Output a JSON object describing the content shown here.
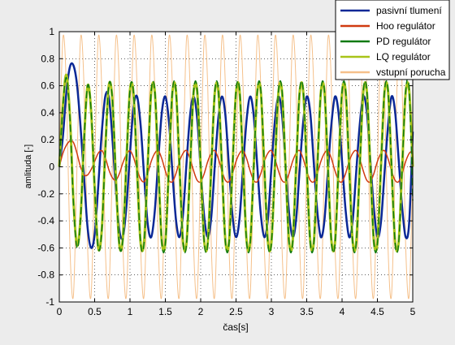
{
  "chart_data": {
    "type": "line",
    "title": "",
    "xlabel": "čas[s]",
    "ylabel": "amlituda [-]",
    "xlim": [
      0,
      5
    ],
    "ylim": [
      -1,
      1
    ],
    "xticks": [
      "0",
      "0.5",
      "1",
      "1.5",
      "2",
      "2.5",
      "3",
      "3.5",
      "4",
      "4.5",
      "5"
    ],
    "yticks": [
      "1",
      "0.8",
      "0.6",
      "0.4",
      "0.2",
      "0",
      "-0.2",
      "-0.4",
      "-0.6",
      "-0.8",
      "-1"
    ],
    "grid": true,
    "legend_position": "top-right",
    "series": [
      {
        "name": "vstupní porucha",
        "color": "#f5c08a",
        "width": 1,
        "x": [
          0.0,
          0.05,
          0.1,
          0.15,
          0.2,
          0.25,
          0.3,
          0.35,
          0.4,
          0.45,
          0.5,
          0.55,
          0.6,
          0.65,
          0.7,
          0.75,
          0.8,
          0.85,
          0.9,
          0.95,
          1.0,
          1.05,
          1.1,
          1.15,
          1.2,
          1.25,
          1.3,
          1.35,
          1.4,
          1.45,
          1.5,
          1.55,
          1.6,
          1.65,
          1.7,
          1.75,
          1.8,
          1.85,
          1.9,
          1.95,
          2.0,
          2.05,
          2.1,
          2.15,
          2.2,
          2.25,
          2.3,
          2.35,
          2.4,
          2.45,
          2.5,
          2.55,
          2.6,
          2.65,
          2.7,
          2.75,
          2.8,
          2.85,
          2.9,
          2.95,
          3.0,
          3.05,
          3.1,
          3.15,
          3.2,
          3.25,
          3.3,
          3.35,
          3.4,
          3.45,
          3.5,
          3.55,
          3.6,
          3.65,
          3.7,
          3.75,
          3.8,
          3.85,
          3.9,
          3.95,
          4.0,
          4.05,
          4.1,
          4.15,
          4.2,
          4.25,
          4.3,
          4.35,
          4.4,
          4.45,
          4.5,
          4.55,
          4.6,
          4.65,
          4.7,
          4.75,
          4.8,
          4.85,
          4.9,
          4.95,
          5.0
        ],
        "y": [
          0,
          0.95,
          0.59,
          -0.59,
          -0.95,
          0,
          0.95,
          0.59,
          -0.59,
          -0.95,
          0,
          0.95,
          0.59,
          -0.59,
          -0.95,
          0,
          0.95,
          0.59,
          -0.59,
          -0.95,
          0,
          0.95,
          0.59,
          -0.59,
          -0.95,
          0,
          0.95,
          0.59,
          -0.59,
          -0.95,
          0,
          0.95,
          0.59,
          -0.59,
          -0.95,
          0,
          0.95,
          0.59,
          -0.59,
          -0.95,
          0,
          0.95,
          0.59,
          -0.59,
          -0.95,
          0,
          0.95,
          0.59,
          -0.59,
          -0.95,
          0,
          0.95,
          0.59,
          -0.59,
          -0.95,
          0,
          0.95,
          0.59,
          -0.59,
          -0.95,
          0,
          0.95,
          0.59,
          -0.59,
          -0.95,
          0,
          0.95,
          0.59,
          -0.59,
          -0.95,
          0,
          0.95,
          0.59,
          -0.59,
          -0.95,
          0,
          0.95,
          0.59,
          -0.59,
          -0.95,
          0,
          0.95,
          0.59,
          -0.59,
          -0.95,
          0,
          0.95,
          0.59,
          -0.59,
          -0.95,
          0,
          0.95,
          0.59,
          -0.59,
          -0.95,
          0,
          0.95,
          0.59,
          -0.59,
          -0.95,
          0
        ]
      },
      {
        "name": "pasivní tlumení",
        "color": "#0a2896",
        "width": 2.5,
        "x": [
          0.0,
          0.05,
          0.1,
          0.15,
          0.2,
          0.25,
          0.3,
          0.35,
          0.4,
          0.45,
          0.5,
          0.55,
          0.6,
          0.65,
          0.7,
          0.75,
          0.8,
          0.85,
          0.9,
          0.95,
          1.0,
          1.05,
          1.1,
          1.15,
          1.2,
          1.25,
          1.3,
          1.35,
          1.4,
          1.45,
          1.5,
          1.55,
          1.6,
          1.65,
          1.7,
          1.75,
          1.8,
          1.85,
          1.9,
          1.95,
          2.0,
          2.05,
          2.1,
          2.15,
          2.2,
          2.25,
          2.3,
          2.35,
          2.4,
          2.45,
          2.5,
          2.55,
          2.6,
          2.65,
          2.7,
          2.75,
          2.8,
          2.85,
          2.9,
          2.95,
          3.0,
          3.05,
          3.1,
          3.15,
          3.2,
          3.25,
          3.3,
          3.35,
          3.4,
          3.45,
          3.5,
          3.55,
          3.6,
          3.65,
          3.7,
          3.75,
          3.8,
          3.85,
          3.9,
          3.95,
          4.0,
          4.05,
          4.1,
          4.15,
          4.2,
          4.25,
          4.3,
          4.35,
          4.4,
          4.45,
          4.5,
          4.55,
          4.6,
          4.65,
          4.7,
          4.75,
          4.8,
          4.85,
          4.9,
          4.95,
          5.0
        ],
        "y": [
          0,
          0.22,
          0.55,
          0.74,
          0.75,
          0.61,
          0.3,
          -0.08,
          -0.45,
          -0.6,
          -0.5,
          -0.15,
          0.25,
          0.52,
          0.52,
          0.22,
          -0.17,
          -0.47,
          -0.52,
          -0.29,
          0.1,
          0.44,
          0.52,
          0.31,
          -0.07,
          -0.42,
          -0.52,
          -0.33,
          0.05,
          0.4,
          0.52,
          0.34,
          -0.04,
          -0.39,
          -0.52,
          -0.35,
          0.03,
          0.38,
          0.52,
          0.36,
          -0.02,
          -0.37,
          -0.52,
          -0.37,
          0.01,
          0.36,
          0.52,
          0.38,
          0,
          -0.36,
          -0.52,
          -0.38,
          0,
          0.35,
          0.52,
          0.38,
          0.01,
          -0.35,
          -0.52,
          -0.39,
          -0.01,
          0.34,
          0.52,
          0.39,
          0.02,
          -0.34,
          -0.52,
          -0.39,
          -0.02,
          0.33,
          0.52,
          0.4,
          0.03,
          -0.33,
          -0.52,
          -0.4,
          -0.03,
          0.32,
          0.52,
          0.4,
          0.04,
          -0.32,
          -0.52,
          -0.4,
          -0.04,
          0.31,
          0.52,
          0.41,
          0.05,
          -0.31,
          -0.52,
          -0.41,
          -0.05,
          0.3,
          0.52,
          0.41,
          0.06,
          -0.3,
          -0.52,
          -0.41,
          0.26
        ]
      },
      {
        "name": "Hoo regulátor",
        "color": "#d03a10",
        "width": 1.5,
        "x": [
          0.0,
          0.05,
          0.1,
          0.15,
          0.2,
          0.25,
          0.3,
          0.35,
          0.4,
          0.45,
          0.5,
          0.55,
          0.6,
          0.65,
          0.7,
          0.75,
          0.8,
          0.85,
          0.9,
          0.95,
          1.0,
          1.05,
          1.1,
          1.15,
          1.2,
          1.25,
          1.3,
          1.35,
          1.4,
          1.45,
          1.5,
          1.55,
          1.6,
          1.65,
          1.7,
          1.75,
          1.8,
          1.85,
          1.9,
          1.95,
          2.0,
          2.05,
          2.1,
          2.15,
          2.2,
          2.25,
          2.3,
          2.35,
          2.4,
          2.45,
          2.5,
          2.55,
          2.6,
          2.65,
          2.7,
          2.75,
          2.8,
          2.85,
          2.9,
          2.95,
          3.0,
          3.05,
          3.1,
          3.15,
          3.2,
          3.25,
          3.3,
          3.35,
          3.4,
          3.45,
          3.5,
          3.55,
          3.6,
          3.65,
          3.7,
          3.75,
          3.8,
          3.85,
          3.9,
          3.95,
          4.0,
          4.05,
          4.1,
          4.15,
          4.2,
          4.25,
          4.3,
          4.35,
          4.4,
          4.45,
          4.5,
          4.55,
          4.6,
          4.65,
          4.7,
          4.75,
          4.8,
          4.85,
          4.9,
          4.95,
          5.0
        ],
        "y": [
          0,
          0.1,
          0.16,
          0.19,
          0.18,
          0.1,
          0,
          -0.06,
          -0.06,
          -0.02,
          0.04,
          0.1,
          0.12,
          0.07,
          -0.02,
          -0.08,
          -0.1,
          -0.05,
          0.03,
          0.09,
          0.12,
          0.07,
          -0.02,
          -0.09,
          -0.11,
          -0.05,
          0.04,
          0.1,
          0.12,
          0.06,
          -0.03,
          -0.1,
          -0.11,
          -0.05,
          0.04,
          0.1,
          0.12,
          0.06,
          -0.03,
          -0.1,
          -0.11,
          -0.05,
          0.04,
          0.1,
          0.12,
          0.06,
          -0.03,
          -0.1,
          -0.11,
          -0.05,
          0.04,
          0.1,
          0.12,
          0.06,
          -0.03,
          -0.1,
          -0.11,
          -0.05,
          0.04,
          0.1,
          0.12,
          0.06,
          -0.03,
          -0.1,
          -0.11,
          -0.05,
          0.04,
          0.1,
          0.12,
          0.06,
          -0.03,
          -0.1,
          -0.11,
          -0.05,
          0.04,
          0.1,
          0.12,
          0.06,
          -0.03,
          -0.1,
          -0.11,
          -0.05,
          0.04,
          0.1,
          0.12,
          0.06,
          -0.03,
          -0.1,
          -0.11,
          -0.05,
          0.04,
          0.1,
          0.12,
          0.06,
          -0.03,
          -0.1,
          -0.11,
          -0.05,
          0.04,
          0.1,
          0.12
        ]
      },
      {
        "name": "LQ regulátor",
        "color": "#a8c418",
        "width": 3,
        "x": [
          0.0,
          0.05,
          0.1,
          0.15,
          0.2,
          0.25,
          0.3,
          0.35,
          0.4,
          0.45,
          0.5,
          0.55,
          0.6,
          0.65,
          0.7,
          0.75,
          0.8,
          0.85,
          0.9,
          0.95,
          1.0,
          1.05,
          1.1,
          1.15,
          1.2,
          1.25,
          1.3,
          1.35,
          1.4,
          1.45,
          1.5,
          1.55,
          1.6,
          1.65,
          1.7,
          1.75,
          1.8,
          1.85,
          1.9,
          1.95,
          2.0,
          2.05,
          2.1,
          2.15,
          2.2,
          2.25,
          2.3,
          2.35,
          2.4,
          2.45,
          2.5,
          2.55,
          2.6,
          2.65,
          2.7,
          2.75,
          2.8,
          2.85,
          2.9,
          2.95,
          3.0,
          3.05,
          3.1,
          3.15,
          3.2,
          3.25,
          3.3,
          3.35,
          3.4,
          3.45,
          3.5,
          3.55,
          3.6,
          3.65,
          3.7,
          3.75,
          3.8,
          3.85,
          3.9,
          3.95,
          4.0,
          4.05,
          4.1,
          4.15,
          4.2,
          4.25,
          4.3,
          4.35,
          4.4,
          4.45,
          4.5,
          4.55,
          4.6,
          4.65,
          4.7,
          4.75,
          4.8,
          4.85,
          4.9,
          4.95,
          5.0
        ],
        "y": [
          0,
          0.45,
          0.68,
          0.38,
          -0.25,
          -0.58,
          -0.38,
          0.2,
          0.6,
          0.41,
          -0.16,
          -0.6,
          -0.47,
          0.12,
          0.6,
          0.5,
          -0.08,
          -0.58,
          -0.52,
          0.05,
          0.57,
          0.54,
          -0.03,
          -0.56,
          -0.55,
          0.01,
          0.55,
          0.56,
          0,
          -0.55,
          -0.56,
          0,
          0.55,
          0.56,
          0,
          -0.55,
          -0.56,
          0,
          0.55,
          0.56,
          0,
          -0.55,
          -0.56,
          0,
          0.55,
          0.56,
          0,
          -0.55,
          -0.56,
          0,
          0.55,
          0.56,
          0,
          -0.55,
          -0.56,
          0,
          0.55,
          0.56,
          0,
          -0.55,
          -0.56,
          0,
          0.55,
          0.56,
          0,
          -0.55,
          -0.56,
          0,
          0.55,
          0.56,
          0,
          -0.55,
          -0.56,
          0,
          0.55,
          0.56,
          0,
          -0.55,
          -0.56,
          0,
          0.55,
          0.56,
          0,
          -0.55,
          -0.56,
          0,
          0.55,
          0.56,
          0,
          -0.55,
          -0.56,
          0,
          0.55,
          0.56,
          0,
          -0.55,
          -0.56,
          0,
          0.55,
          0.56,
          0
        ]
      },
      {
        "name": "PD regulátor",
        "color": "#0f7a12",
        "width": 1.5,
        "dash": "9,4",
        "x": [
          0.0,
          0.05,
          0.1,
          0.15,
          0.2,
          0.25,
          0.3,
          0.35,
          0.4,
          0.45,
          0.5,
          0.55,
          0.6,
          0.65,
          0.7,
          0.75,
          0.8,
          0.85,
          0.9,
          0.95,
          1.0,
          1.05,
          1.1,
          1.15,
          1.2,
          1.25,
          1.3,
          1.35,
          1.4,
          1.45,
          1.5,
          1.55,
          1.6,
          1.65,
          1.7,
          1.75,
          1.8,
          1.85,
          1.9,
          1.95,
          2.0,
          2.05,
          2.1,
          2.15,
          2.2,
          2.25,
          2.3,
          2.35,
          2.4,
          2.45,
          2.5,
          2.55,
          2.6,
          2.65,
          2.7,
          2.75,
          2.8,
          2.85,
          2.9,
          2.95,
          3.0,
          3.05,
          3.1,
          3.15,
          3.2,
          3.25,
          3.3,
          3.35,
          3.4,
          3.45,
          3.5,
          3.55,
          3.6,
          3.65,
          3.7,
          3.75,
          3.8,
          3.85,
          3.9,
          3.95,
          4.0,
          4.05,
          4.1,
          4.15,
          4.2,
          4.25,
          4.3,
          4.35,
          4.4,
          4.45,
          4.5,
          4.55,
          4.6,
          4.65,
          4.7,
          4.75,
          4.8,
          4.85,
          4.9,
          4.95,
          5.0
        ],
        "y": [
          0,
          0.44,
          0.66,
          0.36,
          -0.27,
          -0.6,
          -0.39,
          0.19,
          0.6,
          0.42,
          -0.15,
          -0.6,
          -0.48,
          0.11,
          0.6,
          0.51,
          -0.07,
          -0.58,
          -0.53,
          0.04,
          0.57,
          0.55,
          -0.02,
          -0.56,
          -0.56,
          0,
          0.56,
          0.57,
          0.01,
          -0.56,
          -0.57,
          -0.01,
          0.56,
          0.57,
          0.01,
          -0.56,
          -0.57,
          -0.01,
          0.56,
          0.57,
          0.01,
          -0.56,
          -0.57,
          -0.01,
          0.56,
          0.57,
          0.01,
          -0.56,
          -0.57,
          -0.01,
          0.56,
          0.57,
          0.01,
          -0.56,
          -0.57,
          -0.01,
          0.56,
          0.57,
          0.01,
          -0.56,
          -0.57,
          -0.01,
          0.56,
          0.57,
          0.01,
          -0.56,
          -0.57,
          -0.01,
          0.56,
          0.57,
          0.01,
          -0.56,
          -0.57,
          -0.01,
          0.56,
          0.57,
          0.01,
          -0.56,
          -0.57,
          -0.01,
          0.56,
          0.57,
          0.01,
          -0.56,
          -0.57,
          -0.01,
          0.56,
          0.57,
          0.01,
          -0.56,
          -0.57,
          -0.01,
          0.56,
          0.57,
          0.01,
          -0.56,
          -0.57,
          -0.01,
          0.56,
          0.57,
          -0.25
        ]
      }
    ],
    "legend": [
      {
        "label": "pasivní tlumení",
        "color": "#0a2896"
      },
      {
        "label": "Hoo regulátor",
        "color": "#d03a10"
      },
      {
        "label": "PD regulátor",
        "color": "#0f7a12"
      },
      {
        "label": "LQ regulátor",
        "color": "#a8c418"
      },
      {
        "label": "vstupní porucha",
        "color": "#f5c08a"
      }
    ]
  }
}
